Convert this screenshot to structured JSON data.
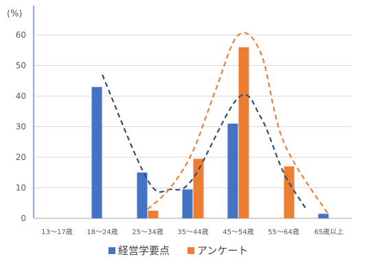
{
  "chart_data": {
    "type": "bar",
    "ylabel": "(%)",
    "ylim": [
      0,
      65
    ],
    "yticks": [
      0,
      10,
      20,
      30,
      40,
      50,
      60
    ],
    "grid": "horizontal",
    "legend_position": "bottom",
    "categories": [
      "13〜17歳",
      "18〜24歳",
      "25〜34歳",
      "35〜44歳",
      "45〜54歳",
      "55〜64歳",
      "65歳以上"
    ],
    "series": [
      {
        "name": "経営学要点",
        "color": "#4472c4",
        "values": [
          0,
          43,
          15,
          9.5,
          31,
          0,
          1.5
        ]
      },
      {
        "name": "アンケート",
        "color": "#ed7d31",
        "values": [
          0,
          0,
          2.5,
          19.5,
          56,
          17,
          0
        ]
      }
    ],
    "annotations": [
      {
        "type": "trend-curve",
        "series": "経営学要点",
        "color": "#2f4b7c",
        "style": "dashed",
        "points": [
          [
            1,
            47
          ],
          [
            2,
            12.5
          ],
          [
            2.5,
            9.5
          ],
          [
            3,
            13
          ],
          [
            4,
            39.5
          ],
          [
            4.5,
            33
          ],
          [
            5,
            15
          ],
          [
            5.5,
            3
          ]
        ]
      },
      {
        "type": "trend-curve",
        "series": "アンケート",
        "color": "#ed7d31",
        "style": "dashed",
        "points": [
          [
            2,
            3
          ],
          [
            2.5,
            10
          ],
          [
            3,
            22
          ],
          [
            3.5,
            42
          ],
          [
            4,
            60
          ],
          [
            4.5,
            54
          ],
          [
            5,
            25
          ],
          [
            6,
            1
          ]
        ]
      }
    ]
  }
}
